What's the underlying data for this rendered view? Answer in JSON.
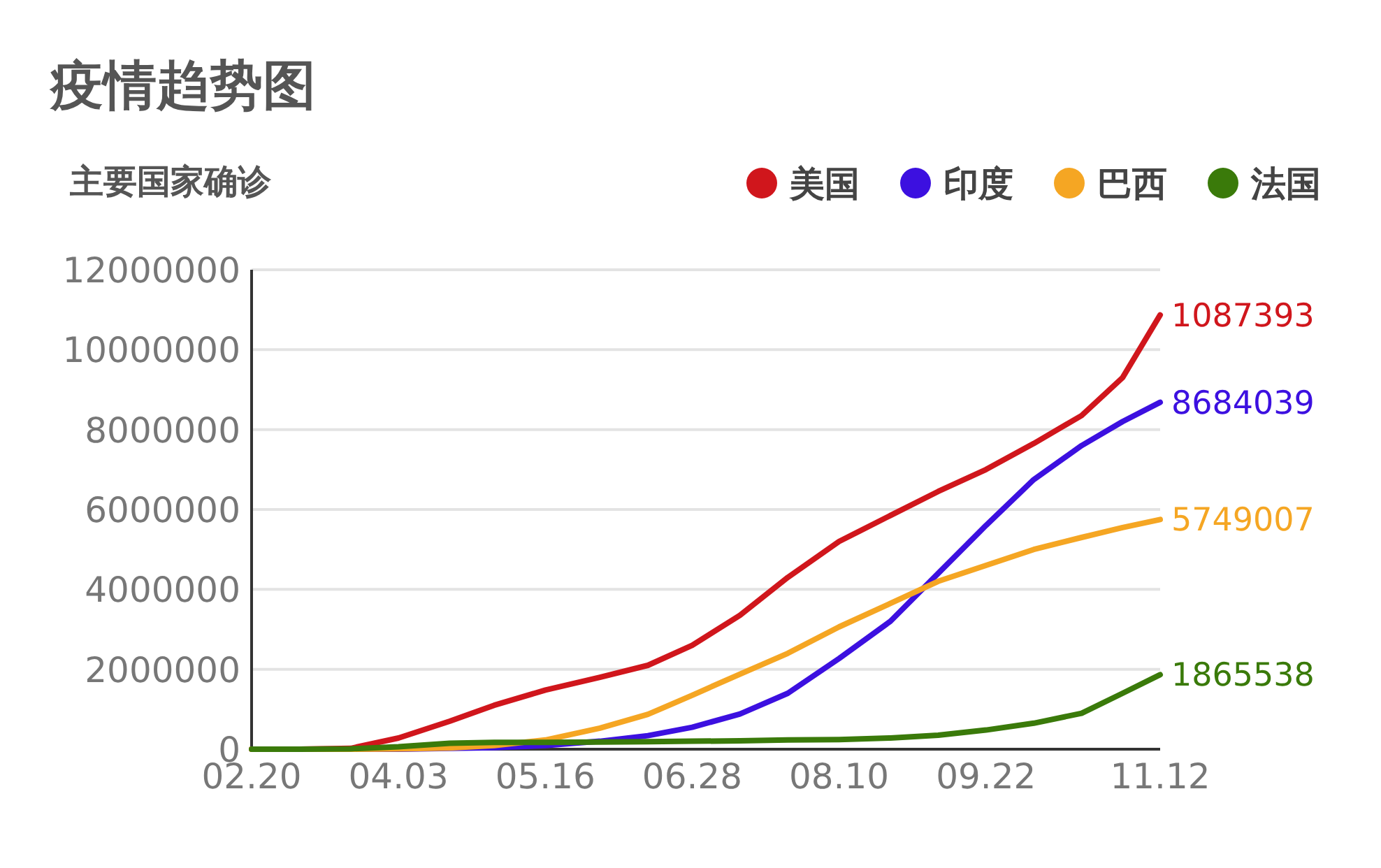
{
  "chart_data": {
    "type": "line",
    "title": "疫情趋势图",
    "subtitle": "主要国家确诊",
    "legend": "top right",
    "grid": "y",
    "x": [
      "--02-20",
      "--03-05",
      "--03-20",
      "--04-03",
      "--04-18",
      "--05-01",
      "--05-16",
      "--06-01",
      "--06-15",
      "--06-28",
      "--07-12",
      "--07-26",
      "--08-10",
      "--08-25",
      "--09-08",
      "--09-22",
      "--10-06",
      "--10-20",
      "--11-01",
      "--11-12"
    ],
    "xlim": [
      "--02-20",
      "--11-12"
    ],
    "xticks": [
      {
        "value": "--02-20",
        "label": "02.20"
      },
      {
        "value": "--04-03",
        "label": "04.03"
      },
      {
        "value": "--05-16",
        "label": "05.16"
      },
      {
        "value": "--06-28",
        "label": "06.28"
      },
      {
        "value": "--08-10",
        "label": "08.10"
      },
      {
        "value": "--09-22",
        "label": "09.22"
      },
      {
        "value": "--11-12",
        "label": "11.12"
      }
    ],
    "ylim": [
      0,
      12000000
    ],
    "yticks": [
      0,
      2000000,
      4000000,
      6000000,
      8000000,
      10000000,
      12000000
    ],
    "series": [
      {
        "name": "美国",
        "color": "#d0161c",
        "values": [
          0,
          0,
          20000,
          280000,
          700000,
          1100000,
          1480000,
          1800000,
          2100000,
          2600000,
          3350000,
          4300000,
          5200000,
          5850000,
          6450000,
          7000000,
          7650000,
          8350000,
          9300000,
          10870000
        ]
      },
      {
        "name": "印度",
        "color": "#3c10e0",
        "values": [
          null,
          null,
          0,
          0,
          20000,
          40000,
          90000,
          200000,
          340000,
          550000,
          880000,
          1400000,
          2270000,
          3200000,
          4400000,
          5600000,
          6750000,
          7600000,
          8200000,
          8684039
        ]
      },
      {
        "name": "巴西",
        "color": "#f5a623",
        "values": [
          0,
          0,
          0,
          10000,
          30000,
          90000,
          230000,
          530000,
          870000,
          1350000,
          1880000,
          2400000,
          3060000,
          3650000,
          4200000,
          4600000,
          5000000,
          5300000,
          5550000,
          5749007
        ]
      },
      {
        "name": "法国",
        "color": "#3a7a0a",
        "values": [
          0,
          0,
          10000,
          60000,
          150000,
          170000,
          170000,
          180000,
          190000,
          200000,
          210000,
          230000,
          240000,
          280000,
          350000,
          480000,
          650000,
          900000,
          1400000,
          1865538
        ]
      }
    ],
    "annotations": [
      {
        "text": "1087393",
        "x": "--11-12",
        "y": 10870000
      },
      {
        "text": "8684039",
        "x": "--11-12",
        "y": 8684039
      },
      {
        "text": "5749007",
        "x": "--11-12",
        "y": 5749007
      },
      {
        "text": "1865538",
        "x": "--11-12",
        "y": 1865538
      }
    ]
  }
}
